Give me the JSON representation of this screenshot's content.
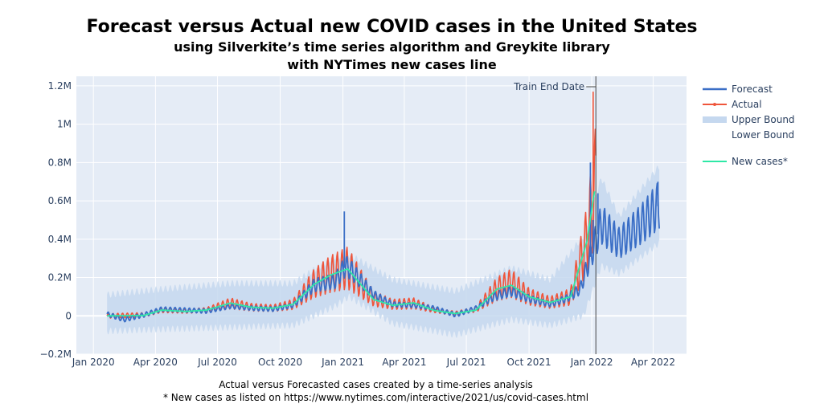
{
  "titles": {
    "line1": "Forecast versus Actual new COVID cases in the United States",
    "line2": "using Silverkite’s time series algorithm and Greykite library",
    "line3": "with NYTimes new cases line"
  },
  "captions": {
    "line1": "Actual versus Forecasted cases created by a time-series analysis",
    "line2": "* New cases as listed on https://www.nytimes.com/interactive/2021/us/covid-cases.html"
  },
  "colors": {
    "forecast": "#3a6ec6",
    "actual": "#ef553b",
    "band": "#c5d8ef",
    "newcases": "#2ee8a6",
    "plot_bg": "#e5ecf6",
    "grid": "#ffffff",
    "vline": "#444444"
  },
  "legend": {
    "forecast": "Forecast",
    "actual": "Actual",
    "upper": "Upper Bound",
    "lower": "Lower Bound",
    "newcases": "New cases*"
  },
  "chart_data": {
    "type": "line",
    "title": "Forecast versus Actual new COVID cases in the United States",
    "xlabel": "",
    "ylabel": "",
    "x_range": [
      "2019-12-07",
      "2022-05-20"
    ],
    "ylim": [
      -200000,
      1250000
    ],
    "grid": true,
    "legend_position": "right",
    "x_ticks": [
      {
        "date": "2020-01-01",
        "label": "Jan 2020"
      },
      {
        "date": "2020-04-01",
        "label": "Apr 2020"
      },
      {
        "date": "2020-07-01",
        "label": "Jul 2020"
      },
      {
        "date": "2020-10-01",
        "label": "Oct 2020"
      },
      {
        "date": "2021-01-01",
        "label": "Jan 2021"
      },
      {
        "date": "2021-04-01",
        "label": "Apr 2021"
      },
      {
        "date": "2021-07-01",
        "label": "Jul 2021"
      },
      {
        "date": "2021-10-01",
        "label": "Oct 2021"
      },
      {
        "date": "2022-01-01",
        "label": "Jan 2022"
      },
      {
        "date": "2022-04-01",
        "label": "Apr 2022"
      }
    ],
    "y_ticks": [
      {
        "value": -200000,
        "label": "−0.2M"
      },
      {
        "value": 0,
        "label": "0"
      },
      {
        "value": 200000,
        "label": "0.2M"
      },
      {
        "value": 400000,
        "label": "0.4M"
      },
      {
        "value": 600000,
        "label": "0.6M"
      },
      {
        "value": 800000,
        "label": "0.8M"
      },
      {
        "value": 1000000,
        "label": "1M"
      },
      {
        "value": 1200000,
        "label": "1.2M"
      }
    ],
    "annotation": {
      "date": "2022-01-07",
      "text": "Train End Date"
    },
    "series": [
      {
        "name": "Forecast",
        "points": [
          [
            "2020-01-21",
            10000
          ],
          [
            "2020-02-15",
            -20000
          ],
          [
            "2020-03-15",
            5000
          ],
          [
            "2020-04-10",
            35000
          ],
          [
            "2020-05-15",
            30000
          ],
          [
            "2020-06-15",
            25000
          ],
          [
            "2020-07-20",
            50000
          ],
          [
            "2020-08-20",
            40000
          ],
          [
            "2020-09-20",
            35000
          ],
          [
            "2020-10-20",
            55000
          ],
          [
            "2020-11-20",
            160000
          ],
          [
            "2020-12-20",
            180000
          ],
          [
            "2021-01-05",
            260000
          ],
          [
            "2021-01-15",
            230000
          ],
          [
            "2021-02-15",
            110000
          ],
          [
            "2021-03-15",
            60000
          ],
          [
            "2021-04-15",
            55000
          ],
          [
            "2021-05-15",
            40000
          ],
          [
            "2021-06-15",
            5000
          ],
          [
            "2021-07-15",
            40000
          ],
          [
            "2021-08-10",
            100000
          ],
          [
            "2021-09-05",
            130000
          ],
          [
            "2021-10-01",
            90000
          ],
          [
            "2021-11-01",
            60000
          ],
          [
            "2021-11-25",
            90000
          ],
          [
            "2021-12-15",
            140000
          ],
          [
            "2022-01-01",
            330000
          ],
          [
            "2022-01-15",
            480000
          ],
          [
            "2022-02-10",
            380000
          ],
          [
            "2022-03-15",
            480000
          ],
          [
            "2022-04-10",
            580000
          ]
        ],
        "spikes": [
          [
            "2021-01-03",
            545000
          ],
          [
            "2021-12-30",
            800000
          ],
          [
            "2022-01-03",
            500000
          ],
          [
            "2022-01-10",
            640000
          ],
          [
            "2022-04-08",
            700000
          ]
        ]
      },
      {
        "name": "Actual",
        "points": [
          [
            "2020-01-21",
            0
          ],
          [
            "2020-03-15",
            5000
          ],
          [
            "2020-04-10",
            30000
          ],
          [
            "2020-05-15",
            25000
          ],
          [
            "2020-06-15",
            30000
          ],
          [
            "2020-07-20",
            65000
          ],
          [
            "2020-08-20",
            45000
          ],
          [
            "2020-09-20",
            40000
          ],
          [
            "2020-10-20",
            60000
          ],
          [
            "2020-11-20",
            170000
          ],
          [
            "2020-12-15",
            220000
          ],
          [
            "2021-01-08",
            250000
          ],
          [
            "2021-02-15",
            90000
          ],
          [
            "2021-03-15",
            60000
          ],
          [
            "2021-04-15",
            65000
          ],
          [
            "2021-05-15",
            30000
          ],
          [
            "2021-06-15",
            12000
          ],
          [
            "2021-07-15",
            35000
          ],
          [
            "2021-08-15",
            140000
          ],
          [
            "2021-09-05",
            170000
          ],
          [
            "2021-10-01",
            100000
          ],
          [
            "2021-11-01",
            70000
          ],
          [
            "2021-12-01",
            100000
          ],
          [
            "2021-12-25",
            400000
          ],
          [
            "2022-01-07",
            700000
          ]
        ],
        "spikes": [
          [
            "2022-01-03",
            1170000
          ]
        ]
      },
      {
        "name": "New cases*",
        "points": [
          [
            "2020-01-21",
            0
          ],
          [
            "2020-03-15",
            2000
          ],
          [
            "2020-04-10",
            30000
          ],
          [
            "2020-05-15",
            23000
          ],
          [
            "2020-06-15",
            30000
          ],
          [
            "2020-07-20",
            67000
          ],
          [
            "2020-08-20",
            45000
          ],
          [
            "2020-09-20",
            40000
          ],
          [
            "2020-10-20",
            60000
          ],
          [
            "2020-11-20",
            165000
          ],
          [
            "2020-12-15",
            215000
          ],
          [
            "2021-01-08",
            245000
          ],
          [
            "2021-02-15",
            85000
          ],
          [
            "2021-03-15",
            55000
          ],
          [
            "2021-04-15",
            68000
          ],
          [
            "2021-05-15",
            28000
          ],
          [
            "2021-06-15",
            12000
          ],
          [
            "2021-07-15",
            30000
          ],
          [
            "2021-08-15",
            140000
          ],
          [
            "2021-09-05",
            160000
          ],
          [
            "2021-10-01",
            100000
          ],
          [
            "2021-11-01",
            70000
          ],
          [
            "2021-12-01",
            100000
          ],
          [
            "2021-12-25",
            390000
          ],
          [
            "2022-01-05",
            650000
          ]
        ]
      },
      {
        "name": "Upper Bound",
        "points": [
          [
            "2020-01-21",
            110000
          ],
          [
            "2020-04-10",
            140000
          ],
          [
            "2020-07-20",
            170000
          ],
          [
            "2020-10-20",
            170000
          ],
          [
            "2020-12-20",
            310000
          ],
          [
            "2021-01-10",
            320000
          ],
          [
            "2021-03-15",
            190000
          ],
          [
            "2021-06-15",
            130000
          ],
          [
            "2021-09-05",
            250000
          ],
          [
            "2021-11-01",
            190000
          ],
          [
            "2021-12-20",
            420000
          ],
          [
            "2022-01-15",
            720000
          ],
          [
            "2022-02-10",
            520000
          ],
          [
            "2022-04-10",
            780000
          ]
        ]
      },
      {
        "name": "Lower Bound",
        "points": [
          [
            "2020-01-21",
            -80000
          ],
          [
            "2020-04-10",
            -70000
          ],
          [
            "2020-07-20",
            -60000
          ],
          [
            "2020-10-20",
            -50000
          ],
          [
            "2020-12-20",
            50000
          ],
          [
            "2021-01-10",
            100000
          ],
          [
            "2021-03-15",
            -40000
          ],
          [
            "2021-06-15",
            -100000
          ],
          [
            "2021-09-05",
            -20000
          ],
          [
            "2021-11-01",
            -50000
          ],
          [
            "2021-12-20",
            0
          ],
          [
            "2022-01-15",
            260000
          ],
          [
            "2022-02-10",
            220000
          ],
          [
            "2022-04-10",
            380000
          ]
        ]
      }
    ]
  }
}
